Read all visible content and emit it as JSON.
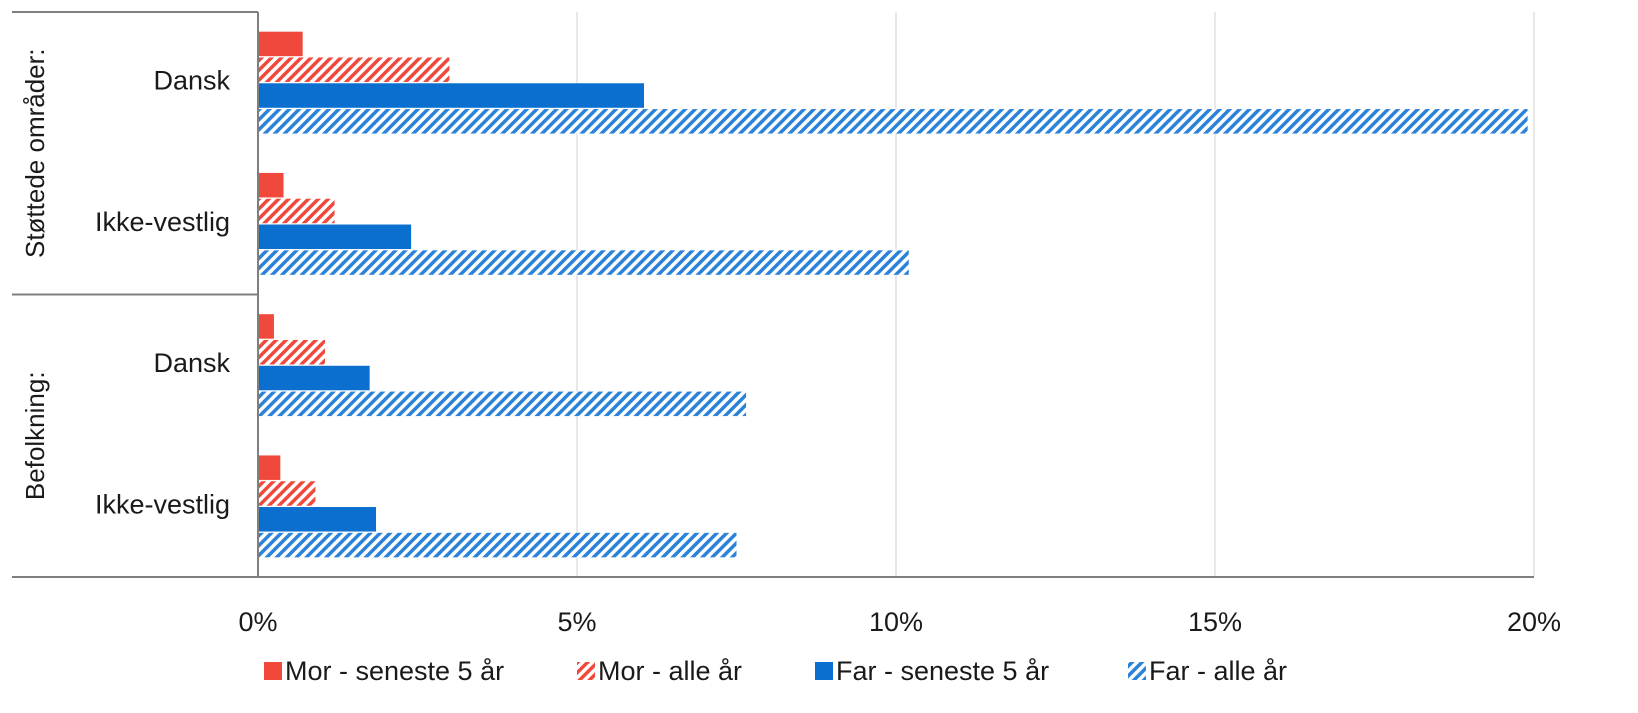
{
  "chart_data": {
    "type": "bar",
    "orientation": "horizontal",
    "groups": [
      {
        "label": "Støttede områder:",
        "categories": [
          "Dansk",
          "Ikke-vestlig"
        ]
      },
      {
        "label": "Befolkning:",
        "categories": [
          "Dansk",
          "Ikke-vestlig"
        ]
      }
    ],
    "categories": [
      "Dansk",
      "Ikke-vestlig",
      "Dansk",
      "Ikke-vestlig"
    ],
    "series": [
      {
        "name": "Mor - seneste 5 år",
        "color": "#f0493c",
        "pattern": "solid",
        "values": [
          0.7,
          0.4,
          0.25,
          0.35
        ]
      },
      {
        "name": "Mor - alle år",
        "color": "#f0493c",
        "pattern": "hatched",
        "values": [
          3.0,
          1.2,
          1.05,
          0.9
        ]
      },
      {
        "name": "Far - seneste 5 år",
        "color": "#0a6fcf",
        "pattern": "solid",
        "values": [
          6.05,
          2.4,
          1.75,
          1.85
        ]
      },
      {
        "name": "Far - alle år",
        "color": "#2b82d9",
        "pattern": "hatched",
        "values": [
          19.9,
          10.2,
          7.65,
          7.5
        ]
      }
    ],
    "xlim": [
      0,
      20
    ],
    "xticks": [
      0,
      5,
      10,
      15,
      20
    ],
    "xtick_labels": [
      "0%",
      "5%",
      "10%",
      "15%",
      "20%"
    ],
    "grid": "vertical",
    "legend": "bottom",
    "title": "",
    "xlabel": "",
    "ylabel": ""
  }
}
